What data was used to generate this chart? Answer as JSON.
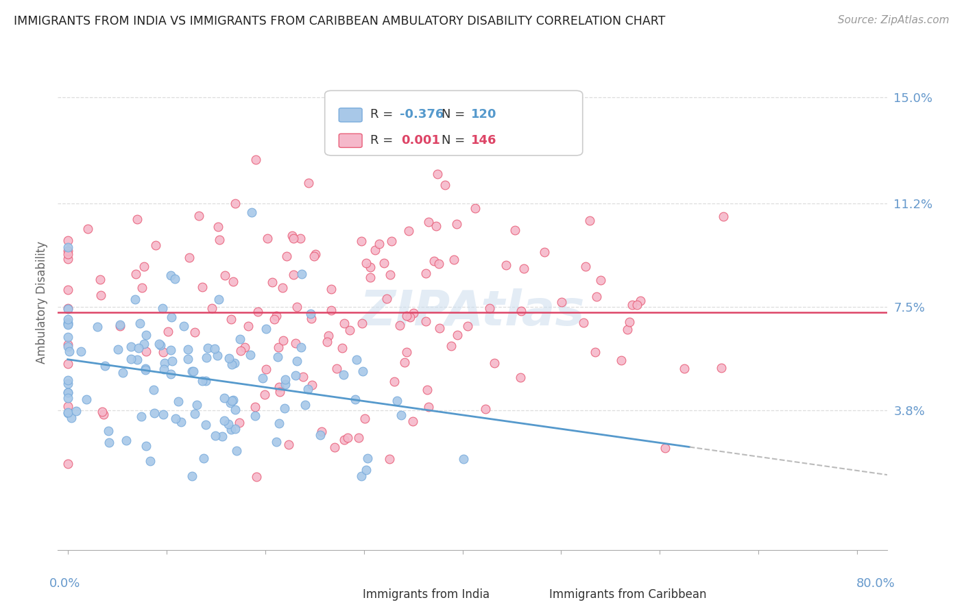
{
  "title": "IMMIGRANTS FROM INDIA VS IMMIGRANTS FROM CARIBBEAN AMBULATORY DISABILITY CORRELATION CHART",
  "source": "Source: ZipAtlas.com",
  "india_R": -0.376,
  "india_N": 120,
  "caribbean_R": 0.001,
  "caribbean_N": 146,
  "india_color": "#a8c8e8",
  "caribbean_color": "#f5b8ca",
  "india_edge_color": "#7aacdc",
  "caribbean_edge_color": "#e8607a",
  "india_line_color": "#5599cc",
  "caribbean_line_color": "#dd4466",
  "trend_dash_color": "#bbbbbb",
  "bg_color": "#ffffff",
  "grid_color": "#dddddd",
  "title_color": "#222222",
  "axis_tick_color": "#6699cc",
  "ylabel_ticks": [
    0.0,
    0.038,
    0.075,
    0.112,
    0.15
  ],
  "ylabel_labels": [
    "",
    "3.8%",
    "7.5%",
    "11.2%",
    "15.0%"
  ],
  "xlim": [
    0.0,
    0.8
  ],
  "ylim": [
    0.0,
    0.163
  ]
}
